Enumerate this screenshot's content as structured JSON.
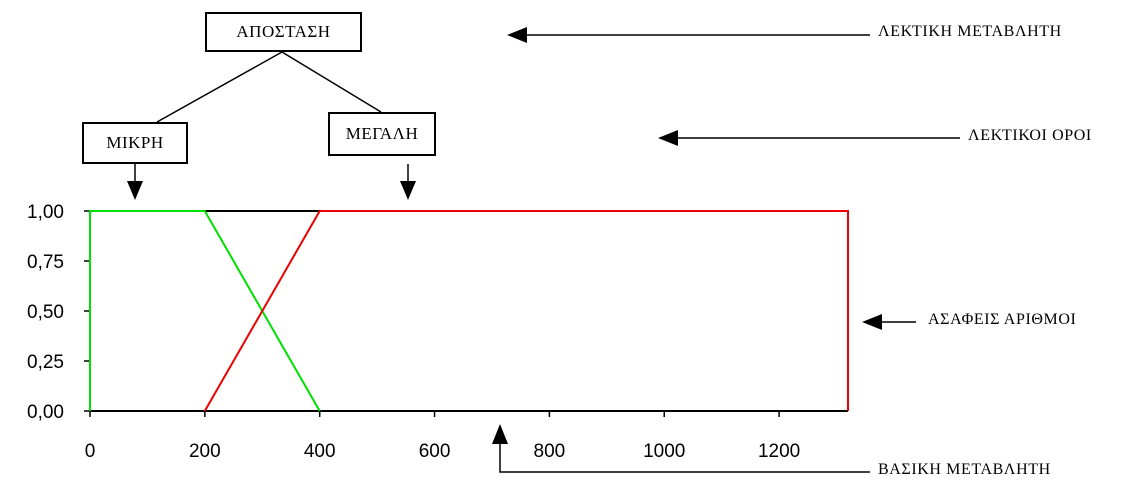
{
  "hierarchy": {
    "variable": "ΑΠΟΣΤΑΣΗ",
    "terms": [
      "ΜΙΚΡΗ",
      "ΜΕΓΑΛΗ"
    ]
  },
  "annotations": {
    "linguistic_variable": "ΛΕΚΤΙΚΗ ΜΕΤΑΒΛΗΤΗ",
    "linguistic_terms": "ΛΕΚΤΙΚΟΙ ΟΡΟΙ",
    "fuzzy_numbers": "ΑΣΑΦΕΙΣ ΑΡΙΘΜΟΙ",
    "base_variable": "ΒΑΣΙΚΗ ΜΕΤΑΒΛΗΤΗ"
  },
  "chart_data": {
    "type": "line",
    "x_ticks": [
      "0",
      "200",
      "400",
      "600",
      "800",
      "1000",
      "1200"
    ],
    "y_ticks": [
      "0,00",
      "0,25",
      "0,50",
      "0,75",
      "1,00"
    ],
    "xlim": [
      0,
      1320
    ],
    "ylim": [
      0,
      1
    ],
    "series": [
      {
        "name": "ΜΙΚΡΗ",
        "color": "#00e000",
        "x": [
          0,
          0,
          200,
          400
        ],
        "y": [
          0,
          1,
          1,
          0
        ]
      },
      {
        "name": "ΜΕΓΑΛΗ",
        "color": "#ee0000",
        "x": [
          200,
          400,
          1320,
          1320
        ],
        "y": [
          0,
          1,
          1,
          0
        ]
      }
    ]
  }
}
